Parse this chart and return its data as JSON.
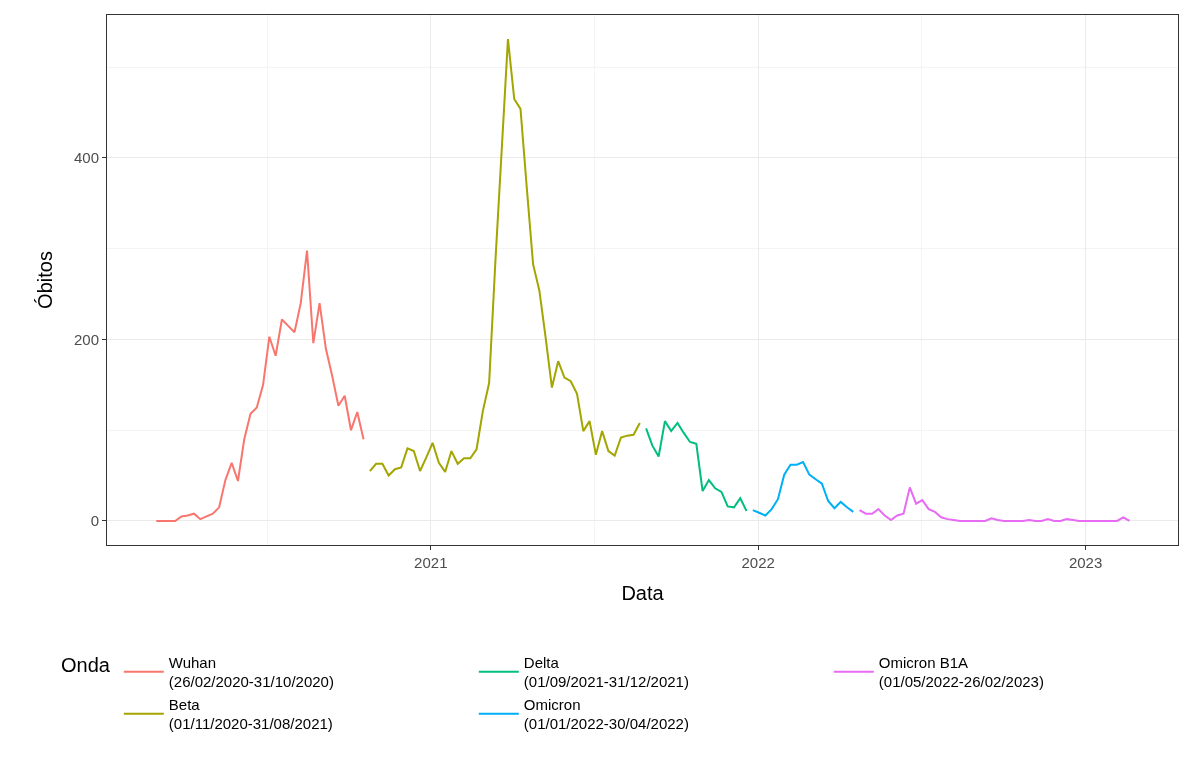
{
  "chart_data": {
    "type": "line",
    "xlabel": "Data",
    "ylabel": "Óbitos",
    "legend_title": "Onda",
    "legend": "bottom",
    "grid": true,
    "xlim": [
      "2020-01-06",
      "2023-04-14"
    ],
    "xticks": [
      {
        "value": "2021-01-01",
        "label": "2021"
      },
      {
        "value": "2022-01-01",
        "label": "2022"
      },
      {
        "value": "2023-01-01",
        "label": "2023"
      }
    ],
    "ylim": [
      -26.5,
      557.5
    ],
    "yticks": [
      0,
      200,
      400
    ],
    "series": [
      {
        "name": "Wuhan\n(26/02/2020-31/10/2020)",
        "color": "#f8766d",
        "x": [
          "2020-03-01",
          "2020-03-08",
          "2020-03-15",
          "2020-03-22",
          "2020-03-29",
          "2020-04-05",
          "2020-04-12",
          "2020-04-19",
          "2020-04-26",
          "2020-05-03",
          "2020-05-10",
          "2020-05-17",
          "2020-05-24",
          "2020-05-31",
          "2020-06-07",
          "2020-06-14",
          "2020-06-21",
          "2020-06-28",
          "2020-07-05",
          "2020-07-12",
          "2020-07-19",
          "2020-07-26",
          "2020-08-02",
          "2020-08-09",
          "2020-08-16",
          "2020-08-23",
          "2020-08-30",
          "2020-09-06",
          "2020-09-13",
          "2020-09-20",
          "2020-09-27",
          "2020-10-04",
          "2020-10-11",
          "2020-10-18"
        ],
        "values": [
          0,
          0,
          0,
          0,
          5,
          6,
          8,
          2,
          5,
          8,
          15,
          45,
          64,
          44,
          90,
          118,
          125,
          150,
          203,
          182,
          222,
          215,
          208,
          240,
          298,
          196,
          240,
          190,
          160,
          127,
          138,
          100,
          120,
          90
        ]
      },
      {
        "name": "Beta\n(01/11/2020-31/08/2021)",
        "color": "#a3a500",
        "x": [
          "2020-10-25",
          "2020-11-01",
          "2020-11-08",
          "2020-11-15",
          "2020-11-22",
          "2020-11-29",
          "2020-12-06",
          "2020-12-13",
          "2020-12-20",
          "2020-12-27",
          "2021-01-03",
          "2021-01-10",
          "2021-01-17",
          "2021-01-24",
          "2021-01-31",
          "2021-02-07",
          "2021-02-14",
          "2021-02-21",
          "2021-02-28",
          "2021-03-07",
          "2021-03-14",
          "2021-03-21",
          "2021-03-28",
          "2021-04-04",
          "2021-04-11",
          "2021-04-18",
          "2021-04-25",
          "2021-05-02",
          "2021-05-09",
          "2021-05-16",
          "2021-05-23",
          "2021-05-30",
          "2021-06-06",
          "2021-06-13",
          "2021-06-20",
          "2021-06-27",
          "2021-07-04",
          "2021-07-11",
          "2021-07-18",
          "2021-07-25",
          "2021-08-01",
          "2021-08-08",
          "2021-08-15",
          "2021-08-22"
        ],
        "values": [
          55,
          63,
          63,
          50,
          57,
          59,
          80,
          77,
          55,
          70,
          86,
          64,
          54,
          77,
          63,
          69,
          69,
          79,
          121,
          152,
          286,
          408,
          531,
          465,
          454,
          367,
          283,
          254,
          202,
          147,
          176,
          158,
          154,
          140,
          99,
          110,
          73,
          99,
          77,
          72,
          92,
          94,
          95,
          108
        ]
      },
      {
        "name": "Delta\n(01/09/2021-31/12/2021)",
        "color": "#00bf7d",
        "x": [
          "2021-08-29",
          "2021-09-05",
          "2021-09-12",
          "2021-09-19",
          "2021-09-26",
          "2021-10-03",
          "2021-10-10",
          "2021-10-17",
          "2021-10-24",
          "2021-10-31",
          "2021-11-07",
          "2021-11-14",
          "2021-11-21",
          "2021-11-28",
          "2021-12-05",
          "2021-12-12",
          "2021-12-19"
        ],
        "values": [
          102,
          83,
          71,
          110,
          99,
          108,
          97,
          87,
          85,
          33,
          45,
          36,
          32,
          16,
          15,
          25,
          11
        ]
      },
      {
        "name": "Omicron\n(01/01/2022-30/04/2022)",
        "color": "#00b0f6",
        "x": [
          "2021-12-26",
          "2022-01-02",
          "2022-01-09",
          "2022-01-16",
          "2022-01-23",
          "2022-01-30",
          "2022-02-06",
          "2022-02-13",
          "2022-02-20",
          "2022-02-27",
          "2022-03-06",
          "2022-03-13",
          "2022-03-20",
          "2022-03-27",
          "2022-04-03",
          "2022-04-10",
          "2022-04-17"
        ],
        "values": [
          12,
          9,
          6,
          13,
          24,
          51,
          62,
          62,
          65,
          51,
          46,
          41,
          22,
          14,
          21,
          15,
          10
        ]
      },
      {
        "name": "Omicron B1A\n(01/05/2022-26/02/2023)",
        "color": "#e76bf3",
        "x": [
          "2022-04-24",
          "2022-05-01",
          "2022-05-08",
          "2022-05-15",
          "2022-05-22",
          "2022-05-29",
          "2022-06-05",
          "2022-06-12",
          "2022-06-19",
          "2022-06-26",
          "2022-07-03",
          "2022-07-10",
          "2022-07-17",
          "2022-07-24",
          "2022-07-31",
          "2022-08-07",
          "2022-08-14",
          "2022-08-21",
          "2022-08-28",
          "2022-09-04",
          "2022-09-11",
          "2022-09-18",
          "2022-09-25",
          "2022-10-02",
          "2022-10-09",
          "2022-10-16",
          "2022-10-23",
          "2022-10-30",
          "2022-11-06",
          "2022-11-13",
          "2022-11-20",
          "2022-11-27",
          "2022-12-04",
          "2022-12-11",
          "2022-12-18",
          "2022-12-25",
          "2023-01-01",
          "2023-01-08",
          "2023-01-15",
          "2023-01-22",
          "2023-01-29",
          "2023-02-05",
          "2023-02-12",
          "2023-02-19"
        ],
        "values": [
          12,
          8,
          8,
          13,
          6,
          1,
          6,
          8,
          37,
          19,
          23,
          13,
          10,
          4,
          2,
          1,
          0,
          0,
          0,
          0,
          0,
          3,
          1,
          0,
          0,
          0,
          0,
          1,
          0,
          0,
          2,
          0,
          0,
          2,
          1,
          0,
          0,
          0,
          0,
          0,
          0,
          0,
          4,
          0
        ]
      }
    ]
  }
}
